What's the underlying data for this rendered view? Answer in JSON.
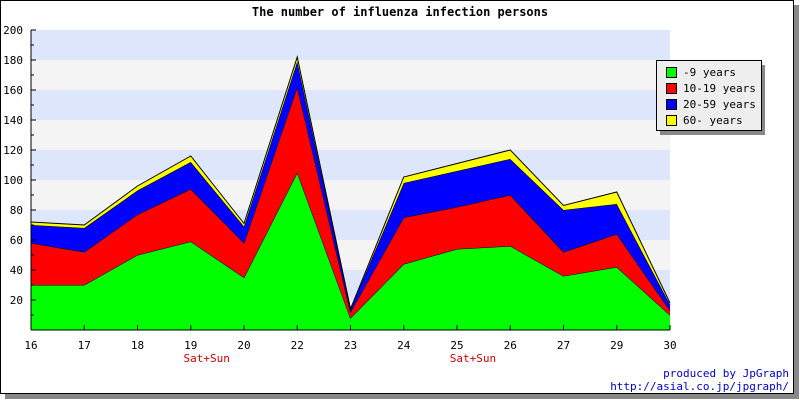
{
  "chart_data": {
    "type": "area",
    "stacked": true,
    "title": "The number of influenza infection persons",
    "xlabel": "",
    "ylabel": "",
    "x": [
      16,
      17,
      18,
      19,
      20,
      22,
      23,
      24,
      25,
      26,
      27,
      29,
      30
    ],
    "x_tick_labels": [
      "16",
      "17",
      "18",
      "19",
      "20",
      "22",
      "23",
      "24",
      "25",
      "26",
      "27",
      "29",
      "30"
    ],
    "weekend_marks": [
      {
        "after_tick": "19",
        "label": "Sat+Sun"
      },
      {
        "after_tick": "25",
        "label": "Sat+Sun"
      }
    ],
    "ylim": [
      0,
      200
    ],
    "y_ticks": [
      20,
      40,
      60,
      80,
      100,
      120,
      140,
      160,
      180,
      200
    ],
    "grid": "horizontal bands",
    "legend_position": "top-right",
    "series": [
      {
        "name": "-9 years",
        "color": "#00ff00",
        "values": [
          30,
          30,
          50,
          59,
          35,
          105,
          8,
          44,
          54,
          56,
          36,
          42,
          10
        ]
      },
      {
        "name": "10-19 years",
        "color": "#ff0000",
        "values": [
          28,
          22,
          27,
          35,
          23,
          57,
          4,
          31,
          28,
          34,
          16,
          22,
          3
        ]
      },
      {
        "name": "20-59 years",
        "color": "#0000ff",
        "values": [
          12,
          16,
          16,
          18,
          11,
          17,
          2,
          23,
          24,
          24,
          28,
          20,
          4
        ]
      },
      {
        "name": "60- years",
        "color": "#ffff00",
        "values": [
          2,
          2,
          3,
          4,
          2,
          3,
          0,
          4,
          5,
          6,
          3,
          8,
          1
        ]
      }
    ]
  },
  "credits": {
    "line1": "produced by JpGraph",
    "line2": "http://asial.co.jp/jpgraph/"
  },
  "colors": {
    "band_light": "#f4f4f4",
    "band_blue": "#dde6fb"
  }
}
